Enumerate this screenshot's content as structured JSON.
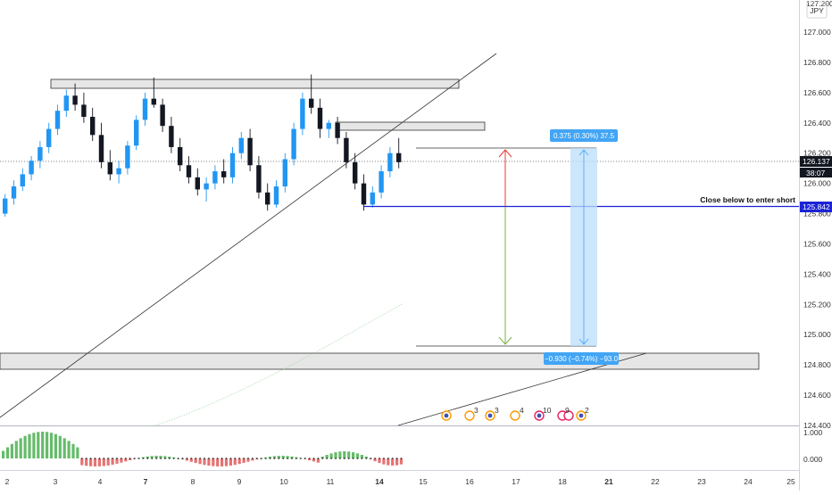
{
  "currency_label": "JPY",
  "price_axis_ticks": [
    "127.000",
    "126.800",
    "126.600",
    "126.400",
    "126.200",
    "126.000",
    "125.800",
    "125.600",
    "125.400",
    "125.200",
    "125.000",
    "124.800",
    "124.600",
    "124.400"
  ],
  "price_axis_top_partial": "127.200",
  "time_axis_ticks": [
    "2",
    "3",
    "4",
    "7",
    "8",
    "9",
    "10",
    "11",
    "14",
    "15",
    "16",
    "17",
    "18",
    "21",
    "22",
    "23",
    "24",
    "25"
  ],
  "osc_axis_ticks": [
    "1.000",
    "0.000"
  ],
  "current_price": "126.137",
  "countdown": "38:07",
  "entry_price": "125.842",
  "annotation_text": "Close below to enter short",
  "measure_top": "0.375 (0.30%) 37.5",
  "measure_bottom": "−0.930 (−0.74%) −93.0",
  "event_badges": [
    "3",
    "3",
    "4",
    "10",
    "9",
    "2"
  ],
  "colors": {
    "bull": "#2196f3",
    "bear": "#131722",
    "entry_line": "#1a23d6",
    "arrow_up": "#e53935",
    "arrow_down": "#7cb342",
    "measure_fill": "#bbdefb",
    "measure_label": "#42a5f5",
    "osc_pos": "#66bb6a",
    "osc_neg": "#e57373"
  },
  "chart_data": {
    "type": "candlestick",
    "ylim": [
      124.4,
      127.2
    ],
    "series": [
      {
        "name": "",
        "candles_ohlc": [
          [
            125.8,
            125.93,
            125.78,
            125.9
          ],
          [
            125.9,
            126.02,
            125.86,
            125.98
          ],
          [
            125.98,
            126.1,
            125.95,
            126.06
          ],
          [
            126.06,
            126.18,
            126.02,
            126.15
          ],
          [
            126.15,
            126.28,
            126.1,
            126.24
          ],
          [
            126.24,
            126.4,
            126.2,
            126.36
          ],
          [
            126.36,
            126.52,
            126.32,
            126.48
          ],
          [
            126.48,
            126.62,
            126.44,
            126.58
          ],
          [
            126.58,
            126.66,
            126.48,
            126.52
          ],
          [
            126.52,
            126.6,
            126.4,
            126.44
          ],
          [
            126.44,
            126.5,
            126.28,
            126.32
          ],
          [
            126.32,
            126.4,
            126.1,
            126.14
          ],
          [
            126.14,
            126.22,
            126.02,
            126.06
          ],
          [
            126.06,
            126.15,
            126.0,
            126.1
          ],
          [
            126.1,
            126.28,
            126.06,
            126.25
          ],
          [
            126.25,
            126.45,
            126.22,
            126.42
          ],
          [
            126.42,
            126.6,
            126.38,
            126.56
          ],
          [
            126.56,
            126.7,
            126.5,
            126.52
          ],
          [
            126.52,
            126.56,
            126.34,
            126.38
          ],
          [
            126.38,
            126.44,
            126.2,
            126.24
          ],
          [
            126.24,
            126.3,
            126.08,
            126.12
          ],
          [
            126.12,
            126.18,
            126.0,
            126.04
          ],
          [
            126.04,
            126.1,
            125.92,
            125.96
          ],
          [
            125.96,
            126.04,
            125.88,
            126.0
          ],
          [
            126.0,
            126.12,
            125.96,
            126.08
          ],
          [
            126.08,
            126.16,
            126.0,
            126.04
          ],
          [
            126.04,
            126.24,
            126.0,
            126.2
          ],
          [
            126.2,
            126.34,
            126.16,
            126.3
          ],
          [
            126.3,
            126.36,
            126.08,
            126.12
          ],
          [
            126.12,
            126.18,
            125.9,
            125.94
          ],
          [
            125.94,
            126.0,
            125.82,
            125.86
          ],
          [
            125.86,
            126.02,
            125.84,
            125.98
          ],
          [
            125.98,
            126.2,
            125.94,
            126.16
          ],
          [
            126.16,
            126.4,
            126.12,
            126.36
          ],
          [
            126.36,
            126.6,
            126.32,
            126.56
          ],
          [
            126.56,
            126.72,
            126.46,
            126.5
          ],
          [
            126.5,
            126.56,
            126.3,
            126.36
          ],
          [
            126.36,
            126.42,
            126.3,
            126.4
          ],
          [
            126.4,
            126.44,
            126.26,
            126.3
          ],
          [
            126.3,
            126.34,
            126.1,
            126.14
          ],
          [
            126.14,
            126.2,
            125.96,
            126.0
          ],
          [
            126.0,
            126.06,
            125.82,
            125.86
          ],
          [
            125.86,
            125.98,
            125.84,
            125.94
          ],
          [
            125.94,
            126.12,
            125.9,
            126.08
          ],
          [
            126.08,
            126.24,
            126.04,
            126.2
          ],
          [
            126.2,
            126.3,
            126.1,
            126.14
          ]
        ]
      }
    ],
    "levels": {
      "entry": 125.842,
      "target": 124.912,
      "stop": 126.217
    }
  }
}
